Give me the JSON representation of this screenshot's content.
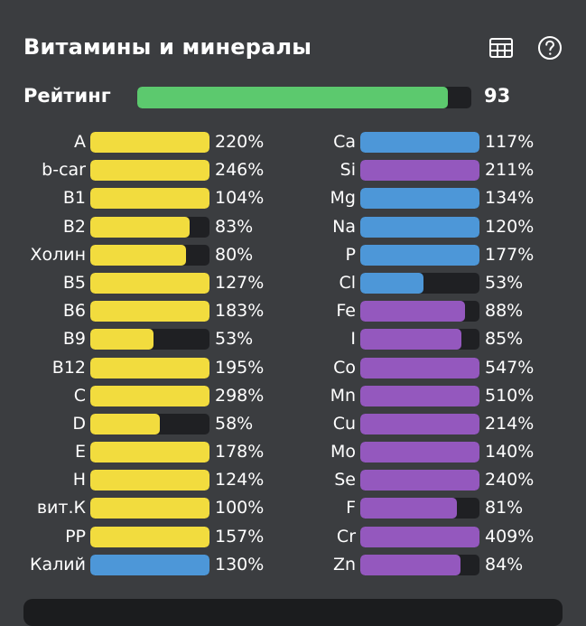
{
  "header": {
    "title": "Витамины и минералы",
    "table_icon": "table-icon",
    "help_icon": "help-icon"
  },
  "rating": {
    "label": "Рейтинг",
    "value": "93",
    "fill_fraction": 0.93,
    "color": "#5cc96e"
  },
  "colors": {
    "yellow": "#f2dc3e",
    "blue": "#4d97d8",
    "purple": "#9458be",
    "track": "#1f2023"
  },
  "vitamins": [
    {
      "label": "A",
      "value": "220%",
      "fill": 1.0,
      "color": "yellow"
    },
    {
      "label": "b-car",
      "value": "246%",
      "fill": 1.0,
      "color": "yellow"
    },
    {
      "label": "B1",
      "value": "104%",
      "fill": 1.0,
      "color": "yellow"
    },
    {
      "label": "B2",
      "value": "83%",
      "fill": 0.83,
      "color": "yellow"
    },
    {
      "label": "Холин",
      "value": "80%",
      "fill": 0.8,
      "color": "yellow"
    },
    {
      "label": "B5",
      "value": "127%",
      "fill": 1.0,
      "color": "yellow"
    },
    {
      "label": "B6",
      "value": "183%",
      "fill": 1.0,
      "color": "yellow"
    },
    {
      "label": "B9",
      "value": "53%",
      "fill": 0.53,
      "color": "yellow"
    },
    {
      "label": "B12",
      "value": "195%",
      "fill": 1.0,
      "color": "yellow"
    },
    {
      "label": "C",
      "value": "298%",
      "fill": 1.0,
      "color": "yellow"
    },
    {
      "label": "D",
      "value": "58%",
      "fill": 0.58,
      "color": "yellow"
    },
    {
      "label": "E",
      "value": "178%",
      "fill": 1.0,
      "color": "yellow"
    },
    {
      "label": "H",
      "value": "124%",
      "fill": 1.0,
      "color": "yellow"
    },
    {
      "label": "вит.К",
      "value": "100%",
      "fill": 1.0,
      "color": "yellow"
    },
    {
      "label": "PP",
      "value": "157%",
      "fill": 1.0,
      "color": "yellow"
    },
    {
      "label": "Калий",
      "value": "130%",
      "fill": 1.0,
      "color": "blue"
    }
  ],
  "minerals": [
    {
      "label": "Ca",
      "value": "117%",
      "fill": 1.0,
      "color": "blue"
    },
    {
      "label": "Si",
      "value": "211%",
      "fill": 1.0,
      "color": "purple"
    },
    {
      "label": "Mg",
      "value": "134%",
      "fill": 1.0,
      "color": "blue"
    },
    {
      "label": "Na",
      "value": "120%",
      "fill": 1.0,
      "color": "blue"
    },
    {
      "label": "P",
      "value": "177%",
      "fill": 1.0,
      "color": "blue"
    },
    {
      "label": "Cl",
      "value": "53%",
      "fill": 0.53,
      "color": "blue"
    },
    {
      "label": "Fe",
      "value": "88%",
      "fill": 0.88,
      "color": "purple"
    },
    {
      "label": "I",
      "value": "85%",
      "fill": 0.85,
      "color": "purple"
    },
    {
      "label": "Co",
      "value": "547%",
      "fill": 1.0,
      "color": "purple"
    },
    {
      "label": "Mn",
      "value": "510%",
      "fill": 1.0,
      "color": "purple"
    },
    {
      "label": "Cu",
      "value": "214%",
      "fill": 1.0,
      "color": "purple"
    },
    {
      "label": "Mo",
      "value": "140%",
      "fill": 1.0,
      "color": "purple"
    },
    {
      "label": "Se",
      "value": "240%",
      "fill": 1.0,
      "color": "purple"
    },
    {
      "label": "F",
      "value": "81%",
      "fill": 0.81,
      "color": "purple"
    },
    {
      "label": "Cr",
      "value": "409%",
      "fill": 1.0,
      "color": "purple"
    },
    {
      "label": "Zn",
      "value": "84%",
      "fill": 0.84,
      "color": "purple"
    }
  ]
}
